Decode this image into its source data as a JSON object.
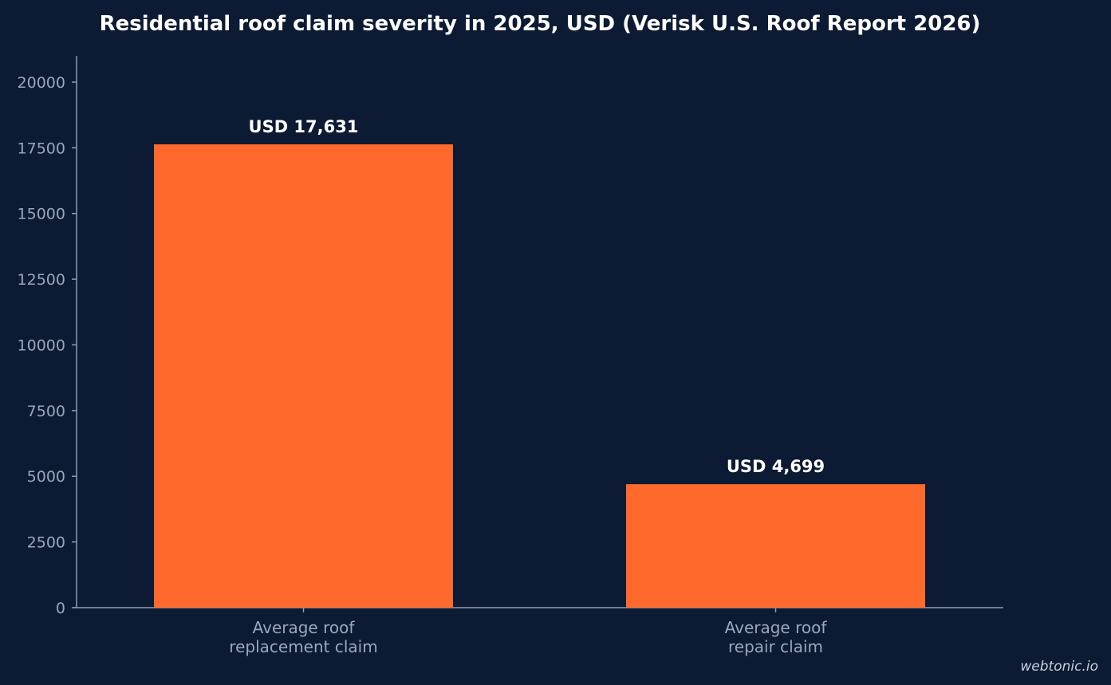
{
  "watermark": "webtonic.io",
  "colors": {
    "background": "#0c1b33",
    "bar": "#ff6a2c",
    "axis": "#8f9bb0",
    "tick_text": "#9aa6bc",
    "label_text": "#ffffff"
  },
  "chart_data": {
    "type": "bar",
    "title": "Residential roof claim severity in 2025, USD (Verisk U.S. Roof Report 2026)",
    "categories": [
      [
        "Average roof",
        "replacement claim"
      ],
      [
        "Average roof",
        "repair claim"
      ]
    ],
    "values": [
      17631,
      4699
    ],
    "data_labels": [
      "USD 17,631",
      "USD 4,699"
    ],
    "xlabel": "",
    "ylabel": "",
    "ylim": [
      0,
      21000
    ],
    "yticks": [
      0,
      2500,
      5000,
      7500,
      10000,
      12500,
      15000,
      17500,
      20000
    ],
    "ytick_labels": [
      "0",
      "2500",
      "5000",
      "7500",
      "10000",
      "12500",
      "15000",
      "17500",
      "20000"
    ],
    "grid": false,
    "legend": "none"
  }
}
